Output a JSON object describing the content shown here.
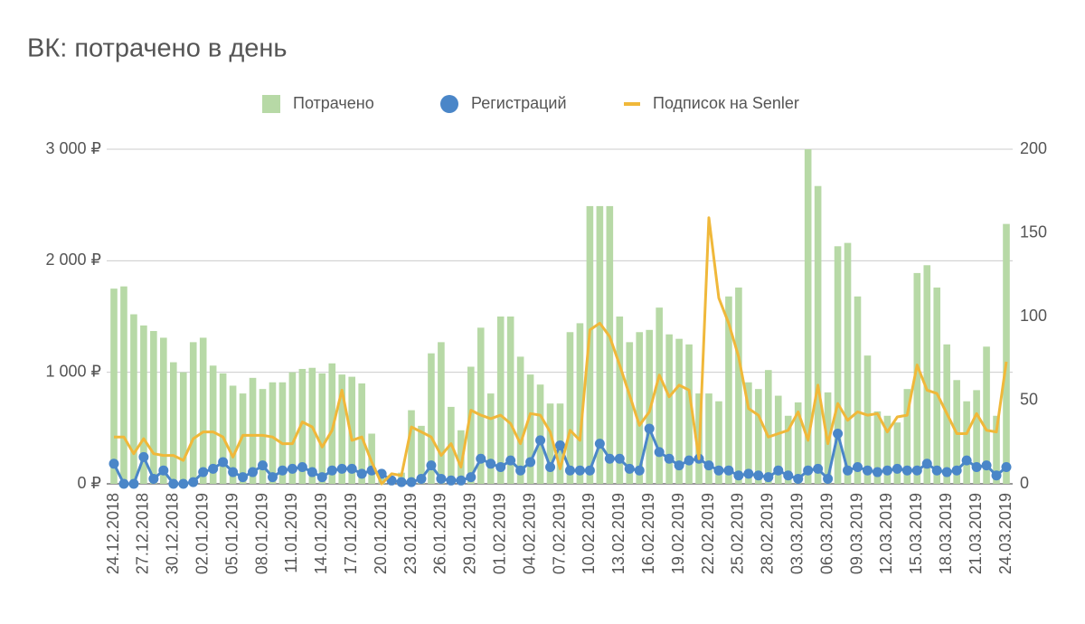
{
  "chart_data": {
    "type": "combo",
    "title": "ВК: потрачено в день",
    "categories": [
      "24.12.2018",
      null,
      null,
      "27.12.2018",
      null,
      null,
      "30.12.2018",
      null,
      null,
      "02.01.2019",
      null,
      null,
      "05.01.2019",
      null,
      null,
      "08.01.2019",
      null,
      null,
      "11.01.2019",
      null,
      null,
      "14.01.2019",
      null,
      null,
      "17.01.2019",
      null,
      null,
      "20.01.2019",
      null,
      null,
      "23.01.2019",
      null,
      null,
      "26.01.2019",
      null,
      null,
      "29.01.2019",
      null,
      null,
      "01.02.2019",
      null,
      null,
      "04.02.2019",
      null,
      null,
      "07.02.2019",
      null,
      null,
      "10.02.2019",
      null,
      null,
      "13.02.2019",
      null,
      null,
      "16.02.2019",
      null,
      null,
      "19.02.2019",
      null,
      null,
      "22.02.2019",
      null,
      null,
      "25.02.2019",
      null,
      null,
      "28.02.2019",
      null,
      null,
      "03.03.2019",
      null,
      null,
      "06.03.2019",
      null,
      null,
      "09.03.2019",
      null,
      null,
      "12.03.2019",
      null,
      null,
      "15.03.2019",
      null,
      null,
      "18.03.2019",
      null,
      null,
      "21.03.2019",
      null,
      null,
      "24.03.2019"
    ],
    "series": [
      {
        "name": "Потрачено",
        "type": "bar",
        "color": "#b7d9a6",
        "values": [
          1750,
          1770,
          1520,
          1420,
          1370,
          1310,
          1090,
          1000,
          1270,
          1310,
          1060,
          990,
          880,
          810,
          950,
          850,
          910,
          910,
          1000,
          1030,
          1040,
          990,
          1080,
          980,
          960,
          900,
          450,
          50,
          60,
          100,
          660,
          520,
          1170,
          1270,
          690,
          480,
          1050,
          1400,
          810,
          1500,
          1500,
          1140,
          980,
          890,
          720,
          720,
          1360,
          1440,
          2490,
          2490,
          2490,
          1500,
          1270,
          1360,
          1380,
          1580,
          1340,
          1300,
          1250,
          810,
          810,
          740,
          1680,
          1760,
          910,
          850,
          1020,
          790,
          610,
          730,
          3000,
          2670,
          820,
          2130,
          2160,
          1680,
          1150,
          650,
          610,
          550,
          850,
          1890,
          1960,
          1760,
          1250,
          930,
          740,
          840,
          1230,
          610,
          2330
        ]
      },
      {
        "name": "Регистраций",
        "type": "line",
        "markers": true,
        "axis": "y2",
        "color": "#4a86c8",
        "values": [
          12,
          0,
          0,
          16,
          3,
          8,
          0,
          0,
          1,
          7,
          9,
          13,
          7,
          4,
          7,
          11,
          4,
          8,
          9,
          10,
          7,
          4,
          8,
          9,
          9,
          6,
          8,
          6,
          2,
          1,
          1,
          3,
          11,
          3,
          2,
          2,
          4,
          15,
          12,
          10,
          14,
          8,
          13,
          26,
          10,
          23,
          8,
          8,
          8,
          24,
          15,
          15,
          9,
          8,
          33,
          19,
          15,
          11,
          14,
          15,
          11,
          8,
          8,
          5,
          6,
          5,
          4,
          8,
          5,
          3,
          8,
          9,
          3,
          30,
          8,
          10,
          8,
          7,
          8,
          9,
          8,
          8,
          12,
          8,
          7,
          8,
          14,
          10,
          11,
          5,
          10
        ]
      },
      {
        "name": "Подписок на Senler",
        "type": "line",
        "markers": false,
        "axis": "y2",
        "color": "#f0b83a",
        "values": [
          28,
          28,
          18,
          27,
          18,
          17,
          17,
          14,
          27,
          31,
          31,
          28,
          16,
          29,
          29,
          29,
          28,
          24,
          24,
          37,
          34,
          22,
          32,
          56,
          26,
          28,
          13,
          0,
          6,
          5,
          34,
          31,
          28,
          17,
          24,
          10,
          44,
          41,
          39,
          41,
          36,
          24,
          42,
          41,
          31,
          9,
          32,
          26,
          92,
          96,
          88,
          71,
          53,
          35,
          43,
          65,
          52,
          59,
          56,
          15,
          159,
          111,
          96,
          76,
          45,
          41,
          28,
          30,
          32,
          43,
          26,
          59,
          24,
          48,
          38,
          43,
          41,
          42,
          31,
          40,
          41,
          71,
          56,
          54,
          42,
          30,
          30,
          42,
          32,
          31,
          73
        ]
      }
    ],
    "ylim": [
      0,
      3000
    ],
    "yticks": [
      {
        "value": 0,
        "label": "0 ₽"
      },
      {
        "value": 1000,
        "label": "1 000 ₽"
      },
      {
        "value": 2000,
        "label": "2 000 ₽"
      },
      {
        "value": 3000,
        "label": "3 000 ₽"
      }
    ],
    "y2lim": [
      0,
      200
    ],
    "y2ticks": [
      0,
      50,
      100,
      150,
      200
    ],
    "grid": true,
    "legend": "top"
  }
}
